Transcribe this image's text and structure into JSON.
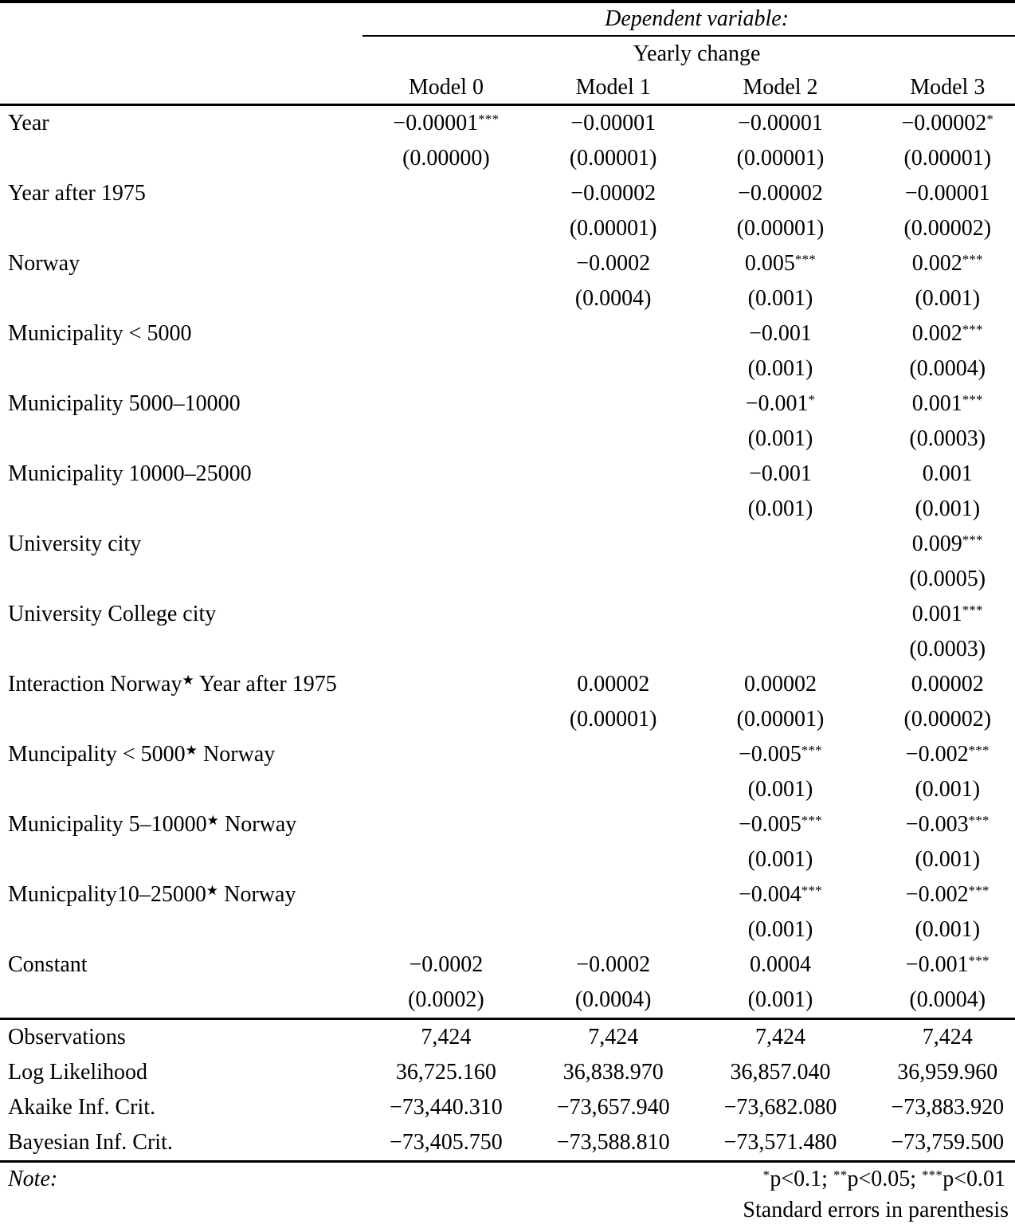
{
  "table": {
    "dependent_variable_label": "Dependent variable:",
    "dependent_variable_name": "Yearly change",
    "model_headers": [
      "Model 0",
      "Model 1",
      "Model 2",
      "Model 3"
    ],
    "rows": [
      {
        "label": "Year",
        "coefs": [
          "−0.00001***",
          "−0.00001",
          "−0.00001",
          "−0.00002*"
        ],
        "ses": [
          "(0.00000)",
          "(0.00001)",
          "(0.00001)",
          "(0.00001)"
        ]
      },
      {
        "label": "Year after 1975",
        "coefs": [
          "",
          "−0.00002",
          "−0.00002",
          "−0.00001"
        ],
        "ses": [
          "",
          "(0.00001)",
          "(0.00001)",
          "(0.00002)"
        ]
      },
      {
        "label": "Norway",
        "coefs": [
          "",
          "−0.0002",
          "0.005***",
          "0.002***"
        ],
        "ses": [
          "",
          "(0.0004)",
          "(0.001)",
          "(0.001)"
        ]
      },
      {
        "label": "Municipality < 5000",
        "coefs": [
          "",
          "",
          "−0.001",
          "0.002***"
        ],
        "ses": [
          "",
          "",
          "(0.001)",
          "(0.0004)"
        ]
      },
      {
        "label": "Municipality 5000–10000",
        "coefs": [
          "",
          "",
          "−0.001*",
          "0.001***"
        ],
        "ses": [
          "",
          "",
          "(0.001)",
          "(0.0003)"
        ]
      },
      {
        "label": "Municipality 10000–25000",
        "coefs": [
          "",
          "",
          "−0.001",
          "0.001"
        ],
        "ses": [
          "",
          "",
          "(0.001)",
          "(0.001)"
        ]
      },
      {
        "label": "University city",
        "coefs": [
          "",
          "",
          "",
          "0.009***"
        ],
        "ses": [
          "",
          "",
          "",
          "(0.0005)"
        ]
      },
      {
        "label": "University College city",
        "coefs": [
          "",
          "",
          "",
          "0.001***"
        ],
        "ses": [
          "",
          "",
          "",
          "(0.0003)"
        ]
      },
      {
        "label": "Interaction Norway★ Year after 1975",
        "coefs": [
          "",
          "0.00002",
          "0.00002",
          "0.00002"
        ],
        "ses": [
          "",
          "(0.00001)",
          "(0.00001)",
          "(0.00002)"
        ]
      },
      {
        "label": "Muncipality < 5000★ Norway",
        "coefs": [
          "",
          "",
          "−0.005***",
          "−0.002***"
        ],
        "ses": [
          "",
          "",
          "(0.001)",
          "(0.001)"
        ]
      },
      {
        "label": "Municipality 5–10000★ Norway",
        "coefs": [
          "",
          "",
          "−0.005***",
          "−0.003***"
        ],
        "ses": [
          "",
          "",
          "(0.001)",
          "(0.001)"
        ]
      },
      {
        "label": "Municpality10–25000★ Norway",
        "coefs": [
          "",
          "",
          "−0.004***",
          "−0.002***"
        ],
        "ses": [
          "",
          "",
          "(0.001)",
          "(0.001)"
        ]
      },
      {
        "label": "Constant",
        "coefs": [
          "−0.0002",
          "−0.0002",
          "0.0004",
          "−0.001***"
        ],
        "ses": [
          "(0.0002)",
          "(0.0004)",
          "(0.001)",
          "(0.0004)"
        ]
      }
    ],
    "stats": [
      {
        "label": "Observations",
        "values": [
          "7,424",
          "7,424",
          "7,424",
          "7,424"
        ]
      },
      {
        "label": "Log Likelihood",
        "values": [
          "36,725.160",
          "36,838.970",
          "36,857.040",
          "36,959.960"
        ]
      },
      {
        "label": "Akaike Inf. Crit.",
        "values": [
          "−73,440.310",
          "−73,657.940",
          "−73,682.080",
          "−73,883.920"
        ]
      },
      {
        "label": "Bayesian Inf. Crit.",
        "values": [
          "−73,405.750",
          "−73,588.810",
          "−73,571.480",
          "−73,759.500"
        ]
      }
    ],
    "note_label": "Note:",
    "note_significance": "*p<0.1; **p<0.05; ***p<0.01",
    "note_se": "Standard errors in parenthesis"
  },
  "colors": {
    "text": "#000000",
    "background": "#ffffff",
    "rule": "#000000"
  }
}
